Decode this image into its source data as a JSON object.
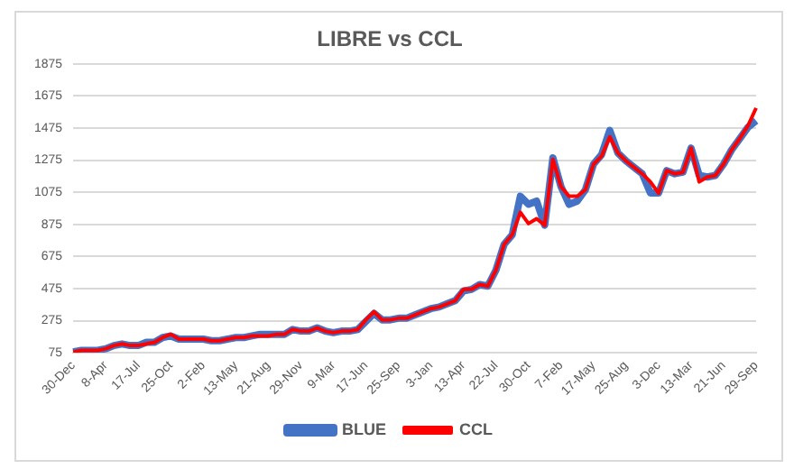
{
  "chart_data": {
    "type": "line",
    "title": "LIBRE vs CCL",
    "categories": [
      "30-Dec",
      null,
      null,
      null,
      "8-Apr",
      null,
      null,
      null,
      "17-Jul",
      null,
      null,
      null,
      "25-Oct",
      null,
      null,
      null,
      "2-Feb",
      null,
      null,
      null,
      "13-May",
      null,
      null,
      null,
      "21-Aug",
      null,
      null,
      null,
      "29-Nov",
      null,
      null,
      null,
      "9-Mar",
      null,
      null,
      null,
      "17-Jun",
      null,
      null,
      null,
      "25-Sep",
      null,
      null,
      null,
      "3-Jan",
      null,
      null,
      null,
      "13-Apr",
      null,
      null,
      null,
      "22-Jul",
      null,
      null,
      null,
      "30-Oct",
      null,
      null,
      null,
      "7-Feb",
      null,
      null,
      null,
      "17-May",
      null,
      null,
      null,
      "25-Aug",
      null,
      null,
      null,
      "3-Dec",
      null,
      null,
      null,
      "13-Mar",
      null,
      null,
      null,
      "21-Jun",
      null,
      null,
      null,
      "29-Sep"
    ],
    "series": [
      {
        "name": "BLUE",
        "color": "#4472c4",
        "values": [
          80,
          90,
          90,
          90,
          100,
          120,
          130,
          120,
          120,
          140,
          140,
          170,
          180,
          160,
          160,
          160,
          160,
          150,
          150,
          160,
          170,
          170,
          180,
          190,
          190,
          190,
          190,
          220,
          210,
          210,
          230,
          210,
          200,
          210,
          210,
          220,
          270,
          320,
          280,
          280,
          290,
          290,
          310,
          330,
          350,
          360,
          380,
          400,
          460,
          470,
          500,
          490,
          590,
          750,
          810,
          1050,
          1000,
          1020,
          870,
          1290,
          1110,
          1000,
          1020,
          1090,
          1250,
          1310,
          1460,
          1320,
          1270,
          1230,
          1190,
          1070,
          1070,
          1210,
          1190,
          1200,
          1350,
          1180,
          1170,
          1180,
          1250,
          1340,
          1410,
          1480,
          1520
        ]
      },
      {
        "name": "CCL",
        "color": "#ff0000",
        "values": [
          80,
          90,
          90,
          90,
          100,
          120,
          130,
          120,
          120,
          130,
          140,
          170,
          190,
          160,
          160,
          160,
          160,
          150,
          150,
          160,
          170,
          170,
          180,
          180,
          180,
          190,
          190,
          220,
          210,
          210,
          230,
          210,
          200,
          210,
          210,
          220,
          280,
          330,
          280,
          280,
          290,
          290,
          310,
          330,
          350,
          360,
          380,
          400,
          470,
          470,
          500,
          490,
          590,
          750,
          810,
          950,
          880,
          910,
          870,
          1280,
          1110,
          1050,
          1050,
          1090,
          1250,
          1300,
          1420,
          1320,
          1270,
          1230,
          1190,
          1140,
          1070,
          1210,
          1190,
          1200,
          1350,
          1140,
          1170,
          1180,
          1250,
          1340,
          1410,
          1490,
          1600
        ]
      }
    ],
    "ylim": [
      75,
      1875
    ],
    "yticks": [
      75,
      275,
      475,
      675,
      875,
      1075,
      1275,
      1475,
      1675,
      1875
    ],
    "grid": "y",
    "legend": "bottom",
    "marker": "none",
    "line_style": "solid"
  }
}
